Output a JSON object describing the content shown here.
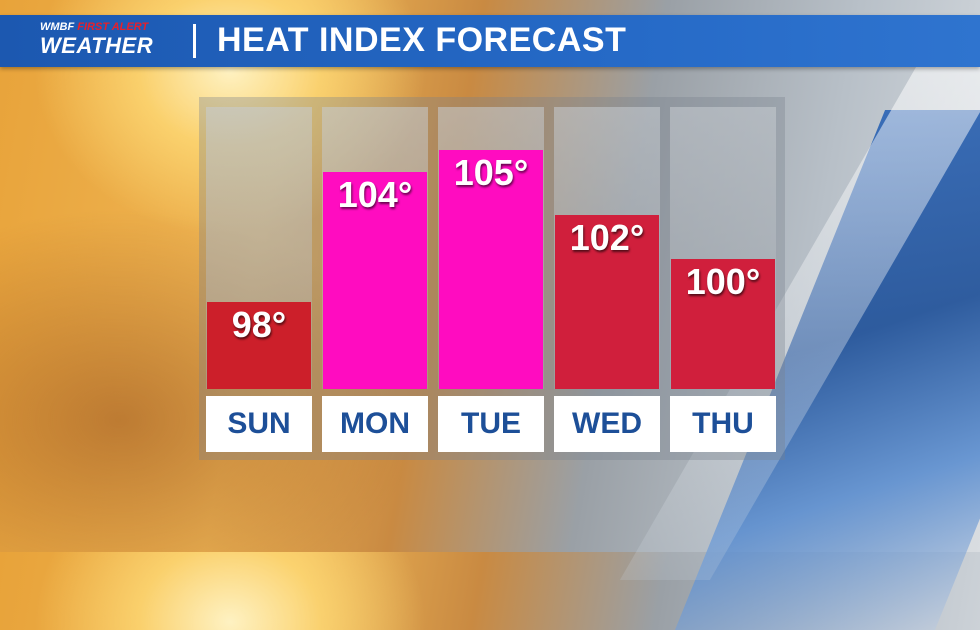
{
  "header": {
    "logo_station": "WMBF",
    "logo_alert": "FIRST ALERT",
    "logo_weather": "WEATHER",
    "title": "HEAT INDEX FORECAST"
  },
  "colors": {
    "header_blue": "#2569c6",
    "day_text": "#1d4f98",
    "bar_red": "#d01f3c",
    "bar_dark_red": "#cc1f2a",
    "bar_magenta": "#ff0cc0"
  },
  "chart_data": {
    "type": "bar",
    "title": "HEAT INDEX FORECAST",
    "categories": [
      "SUN",
      "MON",
      "TUE",
      "WED",
      "THU"
    ],
    "values": [
      98,
      104,
      105,
      102,
      100
    ],
    "value_labels": [
      "98°",
      "104°",
      "105°",
      "102°",
      "100°"
    ],
    "bar_colors": [
      "#cc1f2a",
      "#ff0cc0",
      "#ff0cc0",
      "#d01f3c",
      "#d01f3c"
    ],
    "ylim": [
      94,
      107
    ],
    "xlabel": "",
    "ylabel": "",
    "grid": false,
    "legend": "none"
  }
}
